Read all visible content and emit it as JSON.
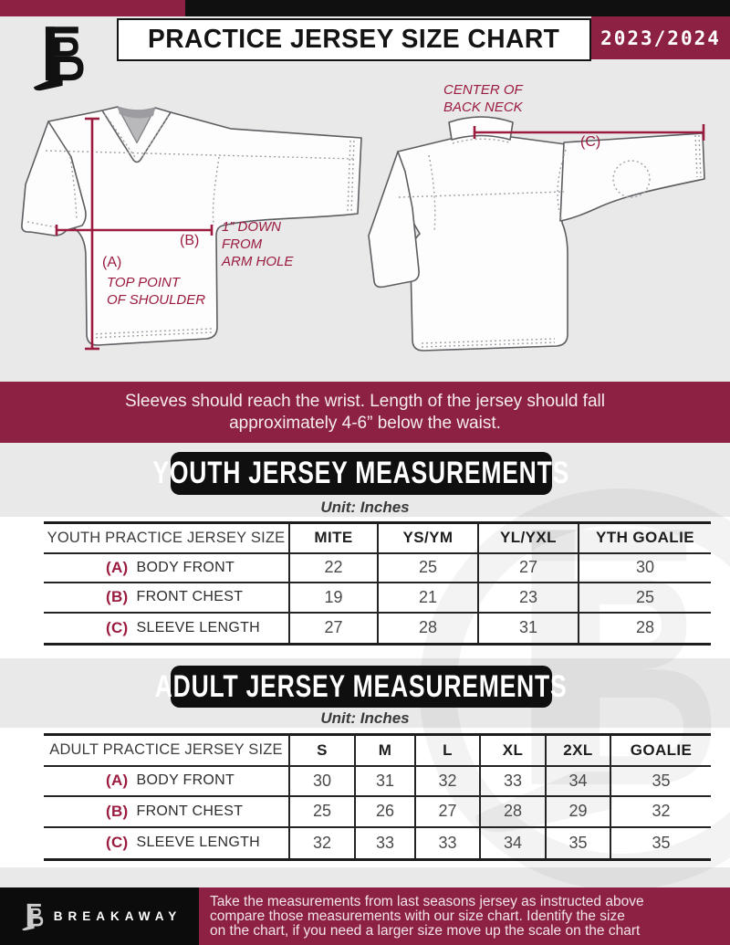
{
  "header": {
    "title": "PRACTICE JERSEY SIZE CHART",
    "season": "2023/2024"
  },
  "diagram": {
    "front": {
      "a_label": "(A)",
      "a_note_lines": [
        "TOP POINT",
        "OF SHOULDER"
      ],
      "b_label": "(B)",
      "b_note_lines": [
        "1” DOWN",
        "FROM",
        "ARM HOLE"
      ]
    },
    "back": {
      "c_label": "(C)",
      "neck_note_lines": [
        "CENTER OF",
        "BACK NECK"
      ]
    }
  },
  "notice_lines": [
    "Sleeves should reach the wrist. Length of the jersey should fall",
    "approximately 4-6” below the waist."
  ],
  "youth": {
    "banner": "YOUTH JERSEY MEASUREMENTS",
    "unit": "Unit: Inches",
    "table": {
      "size_header": "YOUTH PRACTICE JERSEY SIZE",
      "columns": [
        "MITE",
        "YS/YM",
        "YL/YXL",
        "YTH GOALIE"
      ],
      "rows": [
        {
          "key": "(A)",
          "label": "BODY FRONT",
          "values": [
            "22",
            "25",
            "27",
            "30"
          ]
        },
        {
          "key": "(B)",
          "label": "FRONT CHEST",
          "values": [
            "19",
            "21",
            "23",
            "25"
          ]
        },
        {
          "key": "(C)",
          "label": "SLEEVE LENGTH",
          "values": [
            "27",
            "28",
            "31",
            "28"
          ]
        }
      ]
    }
  },
  "adult": {
    "banner": "ADULT JERSEY MEASUREMENTS",
    "unit": "Unit: Inches",
    "table": {
      "size_header": "ADULT PRACTICE JERSEY SIZE",
      "columns": [
        "S",
        "M",
        "L",
        "XL",
        "2XL",
        "GOALIE"
      ],
      "rows": [
        {
          "key": "(A)",
          "label": "BODY FRONT",
          "values": [
            "30",
            "31",
            "32",
            "33",
            "34",
            "35"
          ]
        },
        {
          "key": "(B)",
          "label": "FRONT CHEST",
          "values": [
            "25",
            "26",
            "27",
            "28",
            "29",
            "32"
          ]
        },
        {
          "key": "(C)",
          "label": "SLEEVE LENGTH",
          "values": [
            "32",
            "33",
            "33",
            "34",
            "35",
            "35"
          ]
        }
      ]
    }
  },
  "footer": {
    "brand": "BREAKAWAY",
    "note_lines": [
      "Take the measurements from last seasons jersey as instructed above",
      "compare those measurements  with our size chart. Identify the size",
      "on the chart, if you need a larger size move up the scale on the chart"
    ]
  },
  "colors": {
    "maroon": "#8C2143",
    "accent_line": "#9B1C3F",
    "black": "#101010",
    "page_gray": "#E9E9EA"
  }
}
